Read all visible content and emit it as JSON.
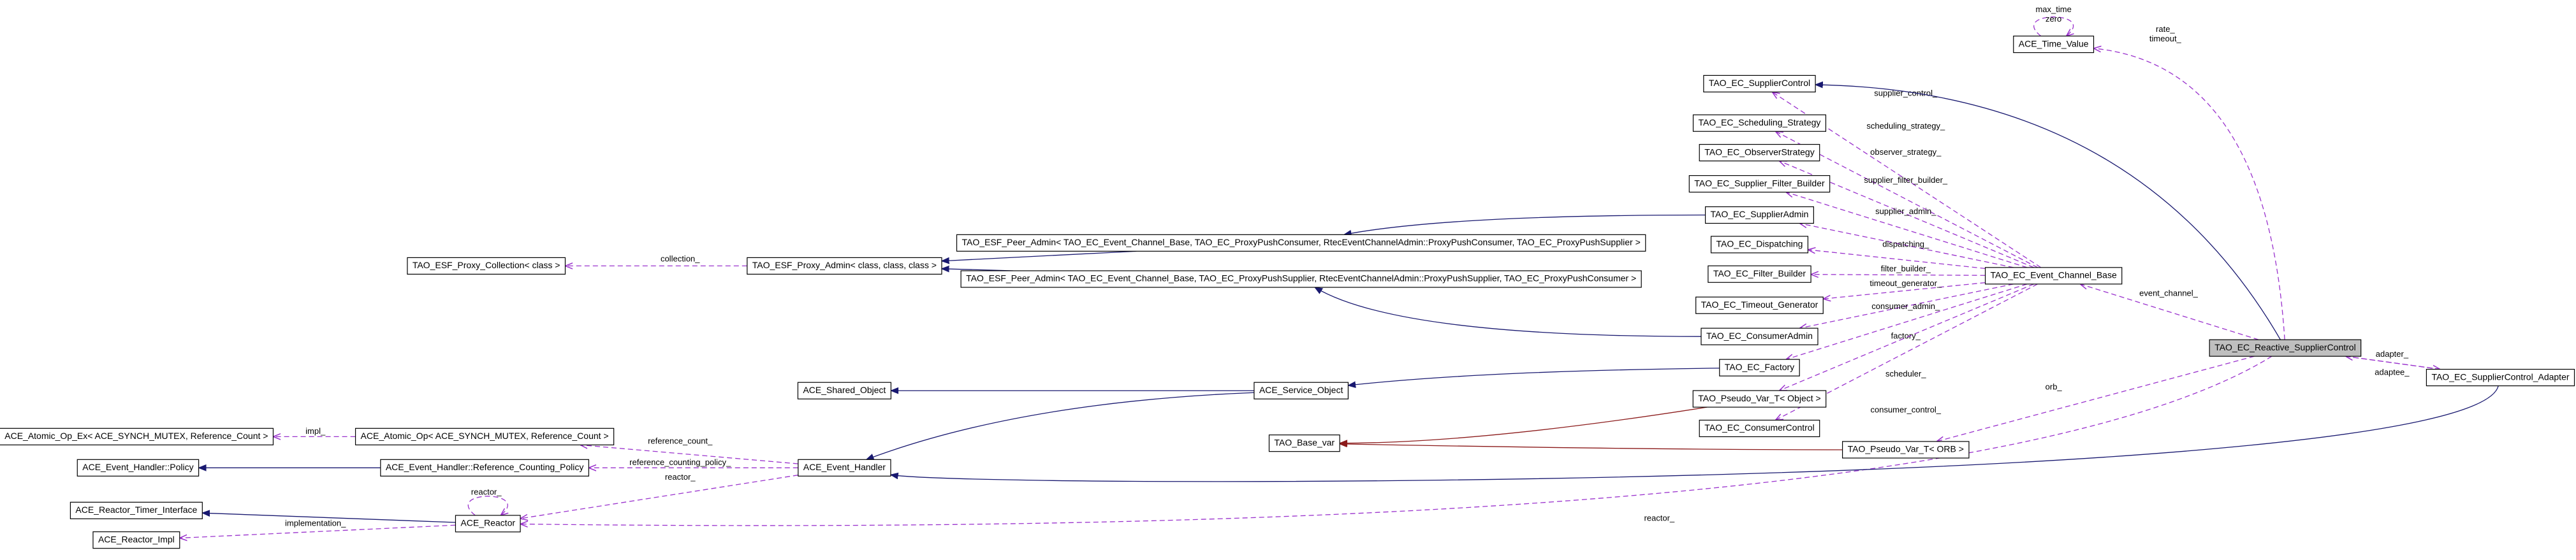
{
  "nodes": [
    {
      "label": "ACE_Time_Value"
    },
    {
      "label": "TAO_EC_SupplierControl"
    },
    {
      "label": "TAO_EC_Scheduling_Strategy"
    },
    {
      "label": "TAO_EC_ObserverStrategy"
    },
    {
      "label": "TAO_EC_Supplier_Filter_Builder"
    },
    {
      "label": "TAO_EC_SupplierAdmin"
    },
    {
      "label": "TAO_EC_Dispatching"
    },
    {
      "label": "TAO_EC_Filter_Builder"
    },
    {
      "label": "TAO_EC_Timeout_Generator"
    },
    {
      "label": "TAO_EC_ConsumerAdmin"
    },
    {
      "label": "TAO_EC_Factory"
    },
    {
      "label": "TAO_Pseudo_Var_T< Object >"
    },
    {
      "label": "TAO_EC_ConsumerControl"
    },
    {
      "label": "TAO_EC_Event_Channel_Base"
    },
    {
      "label": "TAO_EC_Reactive_SupplierControl",
      "highlight": true
    },
    {
      "label": "TAO_EC_SupplierControl_Adapter"
    },
    {
      "label": "TAO_Pseudo_Var_T< ORB >"
    },
    {
      "label": "TAO_Base_var"
    },
    {
      "label": "TAO_ESF_Peer_Admin< TAO_EC_Event_Channel_Base, TAO_EC_ProxyPushConsumer, RtecEventChannelAdmin::ProxyPushConsumer, TAO_EC_ProxyPushSupplier >"
    },
    {
      "label": "TAO_ESF_Peer_Admin< TAO_EC_Event_Channel_Base, TAO_EC_ProxyPushSupplier, RtecEventChannelAdmin::ProxyPushSupplier, TAO_EC_ProxyPushConsumer >"
    },
    {
      "label": "TAO_ESF_Proxy_Admin< class, class, class >"
    },
    {
      "label": "TAO_ESF_Proxy_Collection< class >"
    },
    {
      "label": "ACE_Shared_Object"
    },
    {
      "label": "ACE_Service_Object"
    },
    {
      "label": "ACE_Event_Handler"
    },
    {
      "label": "ACE_Atomic_Op< ACE_SYNCH_MUTEX, Reference_Count >"
    },
    {
      "label": "ACE_Atomic_Op_Ex< ACE_SYNCH_MUTEX, Reference_Count >"
    },
    {
      "label": "ACE_Event_Handler::Reference_Counting_Policy"
    },
    {
      "label": "ACE_Event_Handler::Policy"
    },
    {
      "label": "ACE_Reactor"
    },
    {
      "label": "ACE_Reactor_Timer_Interface"
    },
    {
      "label": "ACE_Reactor_Impl"
    }
  ],
  "edges": [
    {
      "from": 0,
      "to": 0,
      "kind": "usage",
      "labels": [
        "max_time",
        "zero"
      ]
    },
    {
      "from": 14,
      "to": 0,
      "kind": "usage",
      "labels": [
        "rate_",
        "timeout_"
      ]
    },
    {
      "from": 13,
      "to": 1,
      "kind": "usage",
      "labels": [
        "supplier_control_"
      ]
    },
    {
      "from": 13,
      "to": 2,
      "kind": "usage",
      "labels": [
        "scheduling_strategy_"
      ]
    },
    {
      "from": 13,
      "to": 3,
      "kind": "usage",
      "labels": [
        "observer_strategy_"
      ]
    },
    {
      "from": 13,
      "to": 4,
      "kind": "usage",
      "labels": [
        "supplier_filter_builder_"
      ]
    },
    {
      "from": 13,
      "to": 5,
      "kind": "usage",
      "labels": [
        "supplier_admin_"
      ]
    },
    {
      "from": 13,
      "to": 6,
      "kind": "usage",
      "labels": [
        "dispatching_"
      ]
    },
    {
      "from": 13,
      "to": 7,
      "kind": "usage",
      "labels": [
        "filter_builder_"
      ]
    },
    {
      "from": 13,
      "to": 8,
      "kind": "usage",
      "labels": [
        "timeout_generator_"
      ]
    },
    {
      "from": 13,
      "to": 9,
      "kind": "usage",
      "labels": [
        "consumer_admin_"
      ]
    },
    {
      "from": 13,
      "to": 10,
      "kind": "usage",
      "labels": [
        "factory_"
      ]
    },
    {
      "from": 13,
      "to": 11,
      "kind": "usage",
      "labels": [
        "scheduler_"
      ]
    },
    {
      "from": 13,
      "to": 12,
      "kind": "usage",
      "labels": [
        "consumer_control_"
      ]
    },
    {
      "from": 14,
      "to": 13,
      "kind": "usage",
      "labels": [
        "event_channel_"
      ]
    },
    {
      "from": 14,
      "to": 16,
      "kind": "usage",
      "labels": [
        "orb_"
      ]
    },
    {
      "from": 14,
      "to": 29,
      "kind": "usage",
      "labels": [
        "reactor_"
      ]
    },
    {
      "from": 14,
      "to": 15,
      "kind": "usage",
      "labels": [
        "adapter_"
      ]
    },
    {
      "from": 15,
      "to": 14,
      "kind": "usage",
      "labels": [
        "adaptee_"
      ]
    },
    {
      "from": 20,
      "to": 21,
      "kind": "usage",
      "labels": [
        "collection_"
      ]
    },
    {
      "from": 25,
      "to": 26,
      "kind": "usage",
      "labels": [
        "impl_"
      ]
    },
    {
      "from": 24,
      "to": 25,
      "kind": "usage",
      "labels": [
        "reference_count_"
      ]
    },
    {
      "from": 24,
      "to": 27,
      "kind": "usage",
      "labels": [
        "reference_counting_policy_"
      ]
    },
    {
      "from": 24,
      "to": 29,
      "kind": "usage",
      "labels": [
        "reactor_"
      ]
    },
    {
      "from": 29,
      "to": 29,
      "kind": "usage",
      "labels": [
        "reactor_"
      ]
    },
    {
      "from": 29,
      "to": 31,
      "kind": "usage",
      "labels": [
        "implementation_"
      ]
    },
    {
      "from": 14,
      "to": 1,
      "kind": "inheritance"
    },
    {
      "from": 18,
      "to": 20,
      "kind": "inheritance"
    },
    {
      "from": 19,
      "to": 20,
      "kind": "inheritance"
    },
    {
      "from": 5,
      "to": 18,
      "kind": "inheritance"
    },
    {
      "from": 9,
      "to": 19,
      "kind": "inheritance"
    },
    {
      "from": 23,
      "to": 22,
      "kind": "inheritance"
    },
    {
      "from": 10,
      "to": 23,
      "kind": "inheritance"
    },
    {
      "from": 23,
      "to": 24,
      "kind": "inheritance"
    },
    {
      "from": 27,
      "to": 28,
      "kind": "inheritance"
    },
    {
      "from": 29,
      "to": 30,
      "kind": "inheritance"
    },
    {
      "from": 15,
      "to": 24,
      "kind": "inheritance"
    },
    {
      "from": 11,
      "to": 17,
      "kind": "template"
    },
    {
      "from": 16,
      "to": 17,
      "kind": "template"
    }
  ]
}
